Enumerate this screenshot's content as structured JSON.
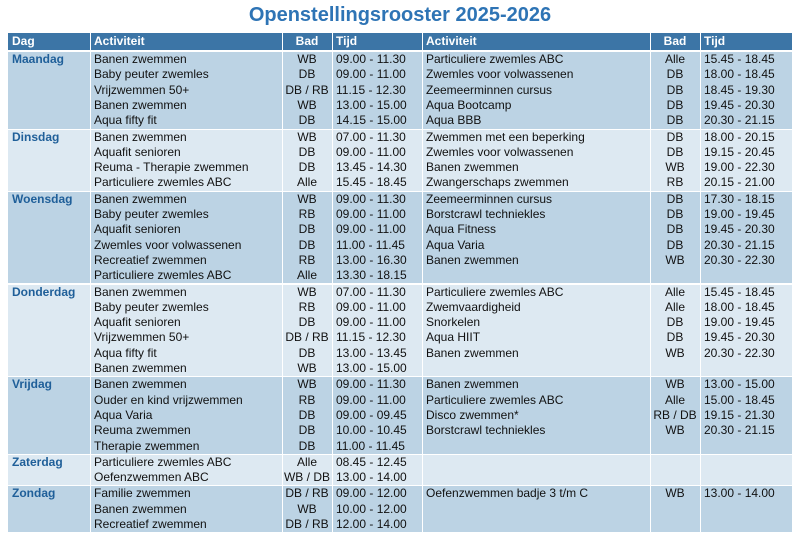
{
  "header": {
    "title": "Openstellingsrooster 2025-2026",
    "columns": [
      "Dag",
      "Activiteit",
      "Bad",
      "Tijd",
      "Activiteit",
      "Bad",
      "Tijd"
    ]
  },
  "days": [
    {
      "name": "Maandag",
      "left": [
        [
          "Banen zwemmen",
          "WB",
          "09.00 - 11.30"
        ],
        [
          "Baby peuter zwemles",
          "DB",
          "09.00 - 11.00"
        ],
        [
          "Vrijzwemmen 50+",
          "DB / RB",
          "11.15 - 12.30"
        ],
        [
          "Banen zwemmen",
          "WB",
          "13.00 - 15.00"
        ],
        [
          "Aqua fifty fit",
          "DB",
          "14.15 - 15.00"
        ]
      ],
      "right": [
        [
          "Particuliere zwemles ABC",
          "Alle",
          "15.45 - 18.45"
        ],
        [
          "Zwemles voor volwassenen",
          "DB",
          "18.00 - 18.45"
        ],
        [
          "Zeemeerminnen cursus",
          "DB",
          "18.45 - 19.30"
        ],
        [
          "Aqua Bootcamp",
          "DB",
          "19.45 - 20.30"
        ],
        [
          "Aqua BBB",
          "DB",
          "20.30 - 21.15"
        ]
      ]
    },
    {
      "name": "Dinsdag",
      "left": [
        [
          "Banen zwemmen",
          "WB",
          "07.00 - 11.30"
        ],
        [
          "Aquafit senioren",
          "DB",
          "09.00 - 11.00"
        ],
        [
          "Reuma - Therapie zwemmen",
          "DB",
          "13.45 - 14.30"
        ],
        [
          "Particuliere zwemles ABC",
          "Alle",
          "15.45 - 18.45"
        ]
      ],
      "right": [
        [
          "Zwemmen met een beperking",
          "DB",
          "18.00 - 20.15"
        ],
        [
          "Zwemles voor volwassenen",
          "DB",
          "19.15 - 20.45"
        ],
        [
          "Banen zwemmen",
          "WB",
          "19.00 - 22.30"
        ],
        [
          "Zwangerschaps zwemmen",
          "RB",
          "20.15 - 21.00"
        ]
      ]
    },
    {
      "name": "Woensdag",
      "left": [
        [
          "Banen zwemmen",
          "WB",
          "09.00 - 11.30"
        ],
        [
          "Baby peuter zwemles",
          "RB",
          "09.00 - 11.00"
        ],
        [
          "Aquafit senioren",
          "DB",
          "09.00 - 11.00"
        ],
        [
          "Zwemles voor volwassenen",
          "DB",
          "11.00 - 11.45"
        ],
        [
          "Recreatief zwemmen",
          "RB",
          "13.00 - 16.30"
        ],
        [
          "Particuliere zwemles ABC",
          "Alle",
          "13.30 - 18.15"
        ]
      ],
      "right": [
        [
          "Zeemeerminnen cursus",
          "DB",
          "17.30 - 18.15"
        ],
        [
          "Borstcrawl techniekles",
          "DB",
          "19.00 - 19.45"
        ],
        [
          "Aqua Fitness",
          "DB",
          "19.45 - 20.30"
        ],
        [
          "Aqua Varia",
          "DB",
          "20.30 - 21.15"
        ],
        [
          "Banen zwemmen",
          "WB",
          "20.30 - 22.30"
        ]
      ]
    },
    {
      "name": "Donderdag",
      "left": [
        [
          "Banen zwemmen",
          "WB",
          "07.00 - 11.30"
        ],
        [
          "Baby peuter zwemles",
          "RB",
          "09.00 - 11.00"
        ],
        [
          "Aquafit senioren",
          "DB",
          "09.00 - 11.00"
        ],
        [
          "Vrijzwemmen 50+",
          "DB / RB",
          "11.15 - 12.30"
        ],
        [
          "Aqua fifty fit",
          "DB",
          "13.00 - 13.45"
        ],
        [
          "Banen zwemmen",
          "WB",
          "13.00 - 15.00"
        ]
      ],
      "right": [
        [
          "Particuliere zwemles ABC",
          "Alle",
          "15.45 - 18.45"
        ],
        [
          "Zwemvaardigheid",
          "Alle",
          "18.00 - 18.45"
        ],
        [
          "Snorkelen",
          "DB",
          "19.00 - 19.45"
        ],
        [
          "Aqua HIIT",
          "DB",
          "19.45 - 20.30"
        ],
        [
          "Banen zwemmen",
          "WB",
          "20.30 - 22.30"
        ]
      ]
    },
    {
      "name": "Vrijdag",
      "left": [
        [
          "Banen zwemmen",
          "WB",
          "09.00 - 11.30"
        ],
        [
          "Ouder en kind vrijzwemmen",
          "RB",
          "09.00 - 11.00"
        ],
        [
          "Aqua Varia",
          "DB",
          "09.00 - 09.45"
        ],
        [
          "Reuma zwemmen",
          "DB",
          "10.00 - 10.45"
        ],
        [
          "Therapie zwemmen",
          "DB",
          "11.00 - 11.45"
        ]
      ],
      "right": [
        [
          "Banen zwemmen",
          "WB",
          "13.00 - 15.00"
        ],
        [
          "Particuliere zwemles ABC",
          "Alle",
          "15.00 - 18.45"
        ],
        [
          "Disco zwemmen*",
          "RB / DB",
          "19.15 - 21.30"
        ],
        [
          "Borstcrawl techniekles",
          "WB",
          "20.30 - 21.15"
        ]
      ]
    },
    {
      "name": "Zaterdag",
      "left": [
        [
          "Particuliere zwemles ABC",
          "Alle",
          "08.45 - 12.45"
        ],
        [
          "Oefenzwemmen ABC",
          "WB / DB",
          "13.00 - 14.00"
        ]
      ],
      "right": []
    },
    {
      "name": "Zondag",
      "left": [
        [
          "Familie zwemmen",
          "DB / RB",
          "09.00 - 12.00"
        ],
        [
          "Banen zwemmen",
          "WB",
          "10.00 - 12.00"
        ],
        [
          "Recreatief zwemmen",
          "DB / RB",
          "12.00 - 14.00"
        ]
      ],
      "right": [
        [
          "Oefenzwemmen badje 3 t/m C",
          "WB",
          "13.00 - 14.00"
        ]
      ]
    }
  ]
}
